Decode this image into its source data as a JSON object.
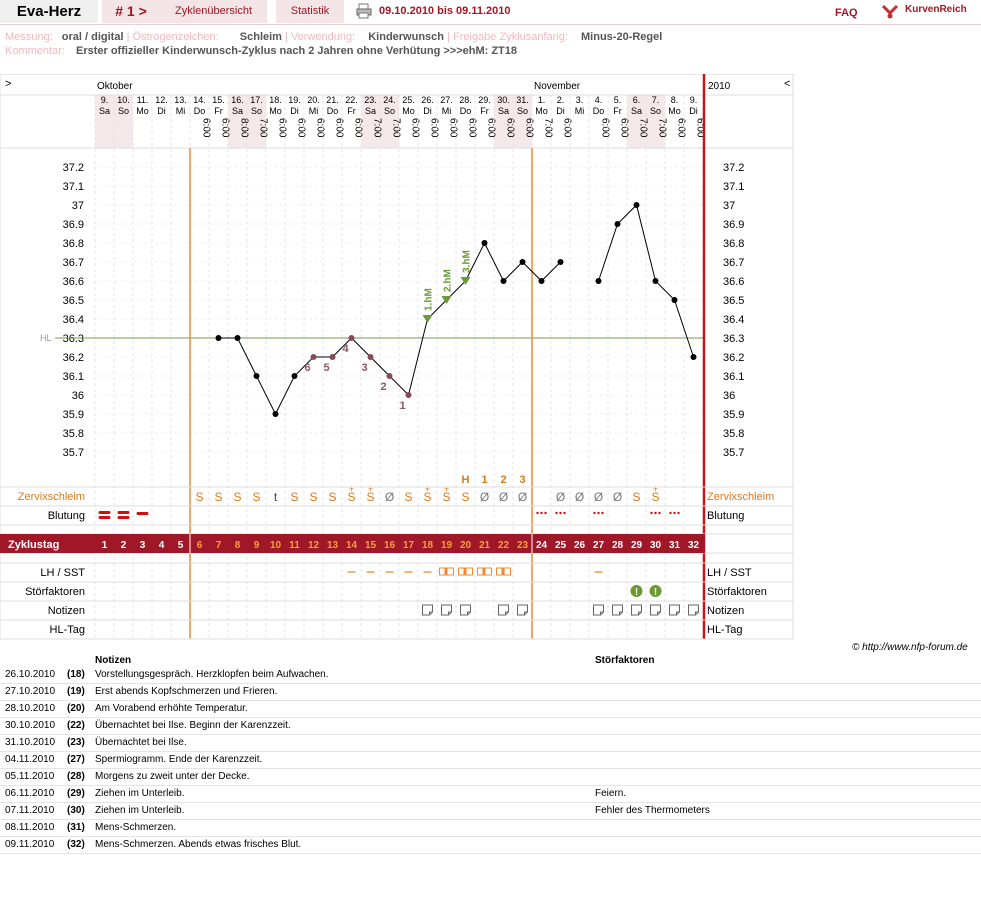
{
  "header": {
    "brand": "Eva-Herz",
    "cycle_nav": "# 1 >",
    "tab_overview": "Zyklenübersicht",
    "tab_stats": "Statistik",
    "date_range": "09.10.2010 bis 09.11.2010",
    "faq": "FAQ",
    "logo_text": "KurvenReich"
  },
  "info": {
    "messung_label": "Messung:",
    "messung_value": "oral / digital",
    "oestrogen_label": "Östrogenzeichen:",
    "oestrogen_value": "Schleim",
    "verwendung_label": "Verwendung:",
    "verwendung_value": "Kinderwunsch",
    "freigabe_label": "Freigabe Zyklusanfang:",
    "freigabe_value": "Minus-20-Regel",
    "kommentar_label": "Kommentar:",
    "kommentar_value": "Erster offizieller Kinderwunsch-Zyklus nach 2 Jahren ohne Verhütung >>>ehM: ZT18"
  },
  "chart_data": {
    "type": "line",
    "nav_left": ">",
    "nav_right": "<",
    "year": "2010",
    "months": [
      {
        "label": "Oktober",
        "start_index": 0
      },
      {
        "label": "November",
        "start_index": 23
      }
    ],
    "days": [
      {
        "d": "9.",
        "w": "Sa",
        "t": "",
        "we": true
      },
      {
        "d": "10.",
        "w": "So",
        "t": "",
        "we": true
      },
      {
        "d": "11.",
        "w": "Mo",
        "t": ""
      },
      {
        "d": "12.",
        "w": "Di",
        "t": ""
      },
      {
        "d": "13.",
        "w": "Mi",
        "t": ""
      },
      {
        "d": "14.",
        "w": "Do",
        "t": "6:00"
      },
      {
        "d": "15.",
        "w": "Fr",
        "t": "6:00"
      },
      {
        "d": "16.",
        "w": "Sa",
        "t": "8:00",
        "we": true
      },
      {
        "d": "17.",
        "w": "So",
        "t": "7:00",
        "we": true
      },
      {
        "d": "18.",
        "w": "Mo",
        "t": "6:00"
      },
      {
        "d": "19.",
        "w": "Di",
        "t": "6:00"
      },
      {
        "d": "20.",
        "w": "Mi",
        "t": "6:00"
      },
      {
        "d": "21.",
        "w": "Do",
        "t": "6:00"
      },
      {
        "d": "22.",
        "w": "Fr",
        "t": "6:00"
      },
      {
        "d": "23.",
        "w": "Sa",
        "t": "7:00",
        "we": true
      },
      {
        "d": "24.",
        "w": "So",
        "t": "7:00",
        "we": true
      },
      {
        "d": "25.",
        "w": "Mo",
        "t": "6:00"
      },
      {
        "d": "26.",
        "w": "Di",
        "t": "6:00"
      },
      {
        "d": "27.",
        "w": "Mi",
        "t": "6:00"
      },
      {
        "d": "28.",
        "w": "Do",
        "t": "6:00"
      },
      {
        "d": "29.",
        "w": "Fr",
        "t": "6:00"
      },
      {
        "d": "30.",
        "w": "Sa",
        "t": "6:00",
        "we": true
      },
      {
        "d": "31.",
        "w": "So",
        "t": "6:00",
        "we": true
      },
      {
        "d": "1.",
        "w": "Mo",
        "t": "7:00"
      },
      {
        "d": "2.",
        "w": "Di",
        "t": "6:00"
      },
      {
        "d": "3.",
        "w": "Mi",
        "t": ""
      },
      {
        "d": "4.",
        "w": "Do",
        "t": "6:00"
      },
      {
        "d": "5.",
        "w": "Fr",
        "t": "6:00"
      },
      {
        "d": "6.",
        "w": "Sa",
        "t": "7:00",
        "we": true
      },
      {
        "d": "7.",
        "w": "So",
        "t": "7:00",
        "we": true
      },
      {
        "d": "8.",
        "w": "Mo",
        "t": "6:00"
      },
      {
        "d": "9.",
        "w": "Di",
        "t": "6:00"
      }
    ],
    "y_ticks": [
      "37.2",
      "37.1",
      "37",
      "36.9",
      "36.8",
      "36.7",
      "36.6",
      "36.5",
      "36.4",
      "36.3",
      "36.2",
      "36.1",
      "36",
      "35.9",
      "35.8",
      "35.7"
    ],
    "ylim": [
      35.65,
      37.25
    ],
    "hl_label": "HL",
    "hl_value": 36.3,
    "temperatures": [
      null,
      null,
      null,
      null,
      null,
      null,
      36.3,
      36.3,
      36.1,
      35.9,
      36.1,
      36.2,
      36.2,
      36.3,
      36.2,
      36.1,
      36.0,
      36.4,
      36.5,
      36.6,
      36.8,
      36.6,
      36.7,
      36.6,
      36.7,
      null,
      36.6,
      36.9,
      37.0,
      36.6,
      36.5,
      36.2
    ],
    "low_counts": [
      {
        "i": 16,
        "label": "1"
      },
      {
        "i": 15,
        "label": "2"
      },
      {
        "i": 14,
        "label": "3"
      },
      {
        "i": 13,
        "label": "4"
      },
      {
        "i": 12,
        "label": "5"
      },
      {
        "i": 11,
        "label": "6"
      }
    ],
    "high_marks": [
      {
        "i": 17,
        "label": "1.hM"
      },
      {
        "i": 18,
        "label": "2.hM"
      },
      {
        "i": 19,
        "label": "3.hM"
      }
    ],
    "phase_lines": [
      5,
      23
    ],
    "mucus_label": "Zervixschleim",
    "mucus_top": {
      "19": "H",
      "20": "1",
      "21": "2",
      "22": "3"
    },
    "mucus": [
      "",
      "",
      "",
      "",
      "",
      "S",
      "S",
      "S",
      "S",
      "t",
      "S",
      "S",
      "S",
      "S+",
      "S+",
      "Ø",
      "S",
      "S+",
      "S+",
      "S",
      "Ø",
      "Ø",
      "Ø",
      "",
      "Ø",
      "Ø",
      "Ø",
      "Ø",
      "S",
      "S+",
      "",
      ""
    ],
    "bleed_label": "Blutung",
    "bleeding": [
      "heavy",
      "heavy",
      "medium",
      "",
      "",
      "",
      "",
      "",
      "",
      "",
      "",
      "",
      "",
      "",
      "",
      "",
      "",
      "",
      "",
      "",
      "",
      "",
      "",
      "spot",
      "spot",
      "",
      "spot",
      "",
      "",
      "spot",
      "spot",
      ""
    ],
    "cycle_label": "Zyklustag",
    "cycle_days": [
      "1",
      "2",
      "3",
      "4",
      "5",
      "6",
      "7",
      "8",
      "9",
      "10",
      "11",
      "12",
      "13",
      "14",
      "15",
      "16",
      "17",
      "18",
      "19",
      "20",
      "21",
      "22",
      "23",
      "24",
      "25",
      "26",
      "27",
      "28",
      "29",
      "30",
      "31",
      "32"
    ],
    "lh_label": "LH / SST",
    "lh": [
      "",
      "",
      "",
      "",
      "",
      "",
      "",
      "",
      "",
      "",
      "",
      "",
      "",
      "dash",
      "dash",
      "dash",
      "dash",
      "dash",
      "box",
      "box",
      "box",
      "box",
      "",
      "",
      "",
      "",
      "dash",
      "",
      "",
      "",
      "",
      ""
    ],
    "stoer_label": "Störfaktoren",
    "stoer": [
      28,
      29
    ],
    "notes_label": "Notizen",
    "notes_days": [
      17,
      18,
      19,
      21,
      22,
      26,
      27,
      28,
      29,
      30,
      31
    ],
    "hltag_label": "HL-Tag",
    "copyright": "© http://www.nfp-forum.de"
  },
  "notes": {
    "col_notes": "Notizen",
    "col_stoer": "Störfaktoren",
    "rows": [
      {
        "date": "26.10.2010",
        "day": "(18)",
        "note": "Vorstellungsgespräch. Herzklopfen beim Aufwachen.",
        "stoer": ""
      },
      {
        "date": "27.10.2010",
        "day": "(19)",
        "note": "Erst abends Kopfschmerzen und Frieren.",
        "stoer": ""
      },
      {
        "date": "28.10.2010",
        "day": "(20)",
        "note": "Am Vorabend erhöhte Temperatur.",
        "stoer": ""
      },
      {
        "date": "30.10.2010",
        "day": "(22)",
        "note": "Übernachtet bei Ilse. Beginn der Karenzzeit.",
        "stoer": ""
      },
      {
        "date": "31.10.2010",
        "day": "(23)",
        "note": "Übernachtet bei Ilse.",
        "stoer": ""
      },
      {
        "date": "04.11.2010",
        "day": "(27)",
        "note": "Spermiogramm. Ende der Karenzzeit.",
        "stoer": ""
      },
      {
        "date": "05.11.2010",
        "day": "(28)",
        "note": "Morgens zu zweit unter der Decke.",
        "stoer": ""
      },
      {
        "date": "06.11.2010",
        "day": "(29)",
        "note": "Ziehen im Unterleib.",
        "stoer": "Feiern."
      },
      {
        "date": "07.11.2010",
        "day": "(30)",
        "note": "Ziehen im Unterleib.",
        "stoer": "Fehler des Thermometers"
      },
      {
        "date": "08.11.2010",
        "day": "(31)",
        "note": "Mens-Schmerzen.",
        "stoer": ""
      },
      {
        "date": "09.11.2010",
        "day": "(32)",
        "note": "Mens-Schmerzen. Abends etwas frisches Blut.",
        "stoer": ""
      }
    ]
  }
}
